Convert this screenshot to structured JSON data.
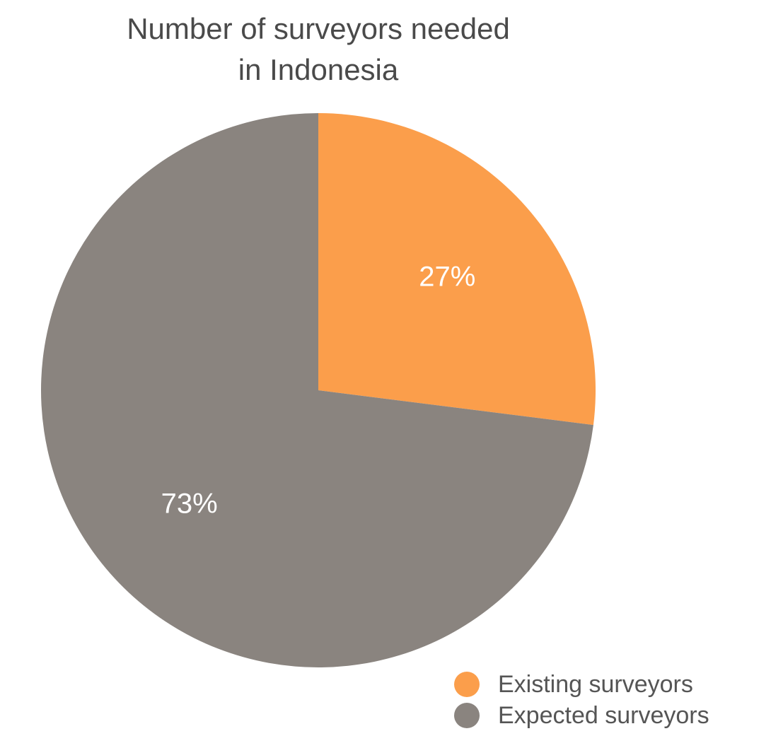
{
  "chart_data": {
    "type": "pie",
    "title": [
      "Number of surveyors needed",
      "in Indonesia"
    ],
    "slices": [
      {
        "name": "Existing surveyors",
        "value": 27,
        "label": "27%",
        "color": "#FB9E4B"
      },
      {
        "name": "Expected surveyors",
        "value": 73,
        "label": "73%",
        "color": "#8A847F"
      }
    ],
    "start_angle": "12 o'clock",
    "direction": "clockwise",
    "legend_position": "bottom-right",
    "label_color": "#ffffff"
  }
}
